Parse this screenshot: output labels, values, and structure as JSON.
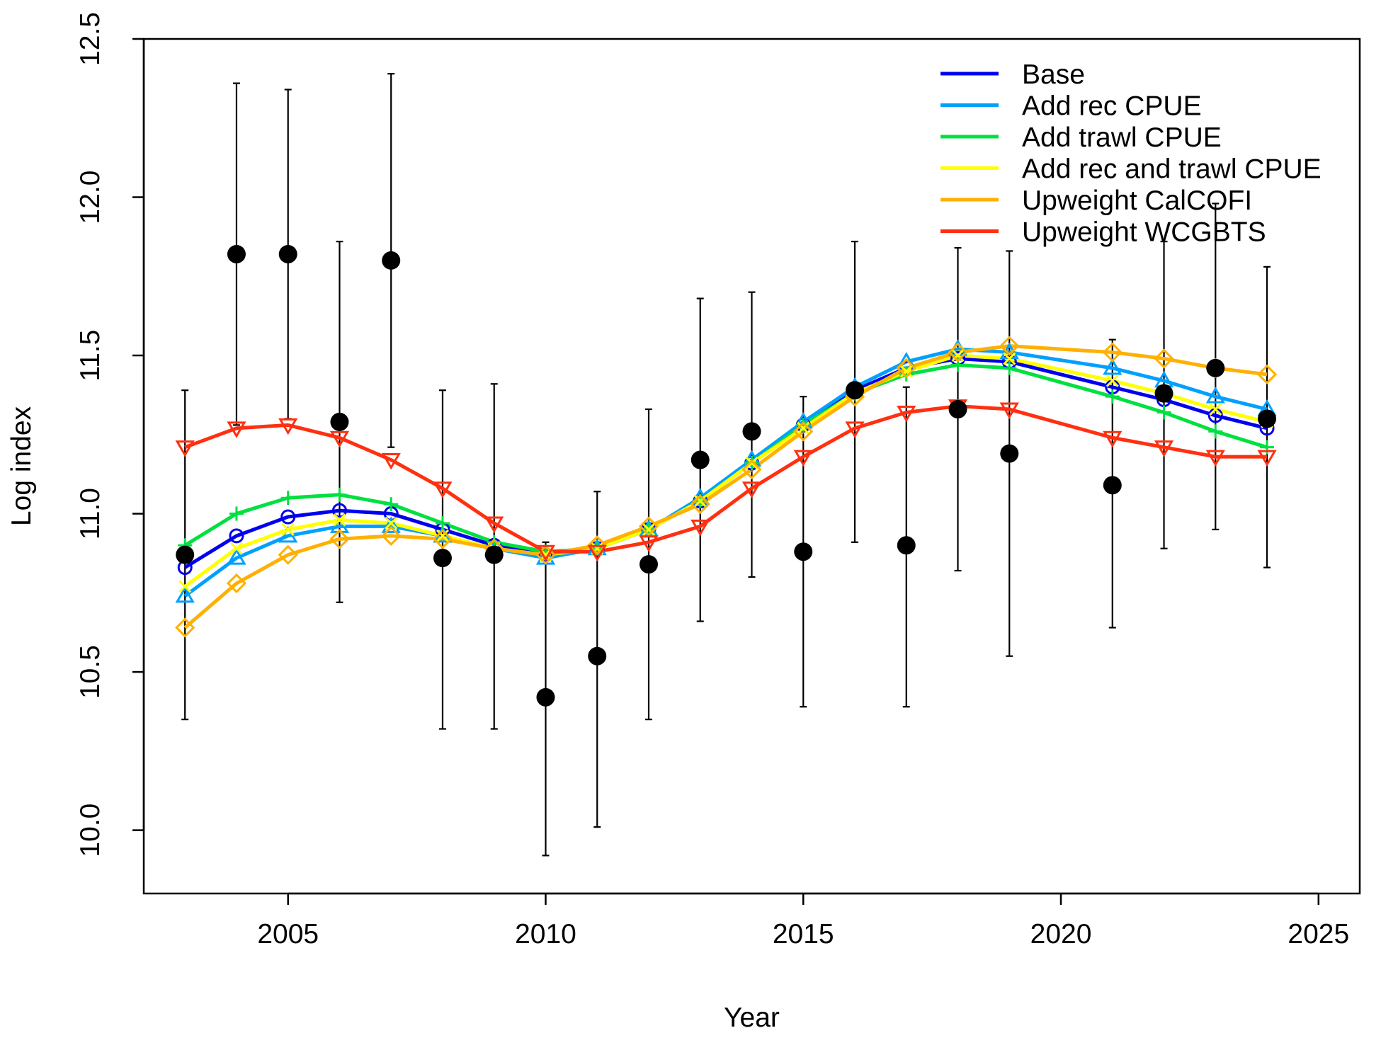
{
  "chart_data": {
    "type": "line",
    "xlabel": "Year",
    "ylabel": "Log index",
    "xlim": [
      2002.2,
      2025.8
    ],
    "ylim": [
      9.8,
      12.5
    ],
    "x_ticks": [
      2005,
      2010,
      2015,
      2020,
      2025
    ],
    "y_ticks": [
      10.0,
      10.5,
      11.0,
      11.5,
      12.0,
      12.5
    ],
    "grid": false,
    "legend_position": "top-right",
    "observations": {
      "x": [
        2003,
        2004,
        2005,
        2006,
        2007,
        2008,
        2009,
        2010,
        2011,
        2012,
        2013,
        2014,
        2015,
        2016,
        2017,
        2018,
        2019,
        2021,
        2022,
        2023,
        2024
      ],
      "y": [
        10.87,
        11.82,
        11.82,
        11.29,
        11.8,
        10.86,
        10.87,
        10.42,
        10.55,
        10.84,
        11.17,
        11.26,
        10.88,
        11.39,
        10.9,
        11.33,
        11.19,
        11.09,
        11.38,
        11.46,
        11.3
      ],
      "lower": [
        10.35,
        11.28,
        11.3,
        10.72,
        11.21,
        10.32,
        10.32,
        9.92,
        10.01,
        10.35,
        10.66,
        10.8,
        10.39,
        10.91,
        10.39,
        10.82,
        10.55,
        10.64,
        10.89,
        10.95,
        10.83
      ],
      "upper": [
        11.39,
        12.36,
        12.34,
        11.86,
        12.39,
        11.39,
        11.41,
        10.91,
        11.07,
        11.33,
        11.68,
        11.7,
        11.37,
        11.86,
        11.4,
        11.84,
        11.83,
        11.55,
        11.86,
        11.98,
        11.78
      ]
    },
    "series_x": [
      2003,
      2004,
      2005,
      2006,
      2007,
      2008,
      2009,
      2010,
      2011,
      2012,
      2013,
      2014,
      2015,
      2016,
      2017,
      2018,
      2019,
      2021,
      2022,
      2023,
      2024
    ],
    "series": [
      {
        "name": "Base",
        "color": "#0000ee",
        "marker": "circle",
        "values": [
          10.83,
          10.93,
          10.99,
          11.01,
          11.0,
          10.95,
          10.9,
          10.87,
          10.89,
          10.95,
          11.04,
          11.16,
          11.28,
          11.39,
          11.46,
          11.49,
          11.48,
          11.4,
          11.36,
          11.31,
          11.27
        ]
      },
      {
        "name": "Add rec CPUE",
        "color": "#00a0ff",
        "marker": "triangle-up",
        "values": [
          10.74,
          10.86,
          10.93,
          10.96,
          10.96,
          10.93,
          10.89,
          10.86,
          10.89,
          10.95,
          11.05,
          11.17,
          11.29,
          11.4,
          11.48,
          11.52,
          11.51,
          11.46,
          11.42,
          11.37,
          11.33
        ]
      },
      {
        "name": "Add trawl CPUE",
        "color": "#00e040",
        "marker": "plus",
        "values": [
          10.9,
          11.0,
          11.05,
          11.06,
          11.03,
          10.97,
          10.91,
          10.88,
          10.89,
          10.95,
          11.04,
          11.16,
          11.28,
          11.38,
          11.44,
          11.47,
          11.46,
          11.37,
          11.32,
          11.26,
          11.21
        ]
      },
      {
        "name": "Add rec and trawl CPUE",
        "color": "#ffff00",
        "marker": "x",
        "values": [
          10.77,
          10.89,
          10.95,
          10.98,
          10.97,
          10.93,
          10.89,
          10.87,
          10.89,
          10.95,
          11.04,
          11.16,
          11.27,
          11.38,
          11.45,
          11.5,
          11.49,
          11.42,
          11.38,
          11.33,
          11.29
        ]
      },
      {
        "name": "Upweight CalCOFI",
        "color": "#ffb000",
        "marker": "diamond",
        "values": [
          10.64,
          10.78,
          10.87,
          10.92,
          10.93,
          10.92,
          10.89,
          10.87,
          10.9,
          10.96,
          11.03,
          11.14,
          11.26,
          11.37,
          11.46,
          11.51,
          11.53,
          11.51,
          11.49,
          11.46,
          11.44
        ]
      },
      {
        "name": "Upweight WCGBTS",
        "color": "#ff3010",
        "marker": "triangle-down",
        "values": [
          11.21,
          11.27,
          11.28,
          11.24,
          11.17,
          11.08,
          10.97,
          10.88,
          10.88,
          10.91,
          10.96,
          11.08,
          11.18,
          11.27,
          11.32,
          11.34,
          11.33,
          11.24,
          11.21,
          11.18,
          11.18
        ]
      }
    ]
  }
}
